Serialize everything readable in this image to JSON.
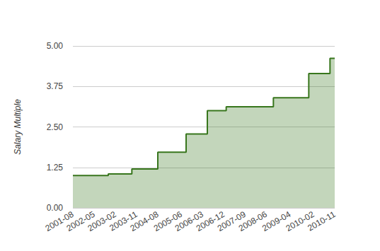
{
  "chart_data": {
    "type": "area",
    "line_style": "step",
    "color": "#38761d",
    "grid": true,
    "y_label": "Salary Multiple",
    "categories": [
      "2001-08",
      null,
      null,
      null,
      null,
      null,
      null,
      null,
      null,
      "2002-05",
      null,
      null,
      null,
      null,
      null,
      null,
      null,
      null,
      "2003-02",
      null,
      null,
      null,
      null,
      null,
      null,
      null,
      null,
      "2003-11",
      null,
      null,
      null,
      null,
      null,
      null,
      null,
      null,
      "2004-08",
      null,
      null,
      null,
      null,
      null,
      null,
      null,
      null,
      null,
      "2005-06",
      null,
      null,
      null,
      null,
      null,
      null,
      null,
      null,
      "2006-03",
      null,
      null,
      null,
      null,
      null,
      null,
      null,
      null,
      "2006-12",
      null,
      null,
      null,
      null,
      null,
      null,
      null,
      null,
      "2007-09",
      null,
      null,
      null,
      null,
      null,
      null,
      null,
      null,
      "2008-06",
      null,
      null,
      null,
      null,
      null,
      null,
      null,
      null,
      null,
      "2009-04",
      null,
      null,
      null,
      null,
      null,
      null,
      null,
      null,
      null,
      "2010-02",
      null,
      null,
      null,
      null,
      null,
      null,
      null,
      null,
      "2010-11"
    ],
    "values": [
      1.0,
      1.0,
      1.0,
      1.0,
      1.0,
      1.0,
      1.0,
      1.0,
      1.0,
      1.0,
      1.0,
      1.0,
      1.0,
      1.0,
      1.0,
      1.05,
      1.05,
      1.05,
      1.05,
      1.05,
      1.05,
      1.05,
      1.05,
      1.05,
      1.05,
      1.2,
      1.2,
      1.2,
      1.2,
      1.2,
      1.2,
      1.2,
      1.2,
      1.2,
      1.2,
      1.2,
      1.72,
      1.72,
      1.72,
      1.72,
      1.72,
      1.72,
      1.72,
      1.72,
      1.72,
      1.72,
      1.72,
      1.72,
      2.28,
      2.28,
      2.28,
      2.28,
      2.28,
      2.28,
      2.28,
      2.28,
      2.28,
      3.0,
      3.0,
      3.0,
      3.0,
      3.0,
      3.0,
      3.0,
      3.0,
      3.12,
      3.12,
      3.12,
      3.12,
      3.12,
      3.12,
      3.12,
      3.12,
      3.12,
      3.12,
      3.12,
      3.12,
      3.12,
      3.12,
      3.12,
      3.12,
      3.12,
      3.12,
      3.12,
      3.12,
      3.4,
      3.4,
      3.4,
      3.4,
      3.4,
      3.4,
      3.4,
      3.4,
      3.4,
      3.4,
      3.4,
      3.4,
      3.4,
      3.4,
      3.4,
      4.15,
      4.15,
      4.15,
      4.15,
      4.15,
      4.15,
      4.15,
      4.15,
      4.15,
      4.62,
      4.62,
      4.62
    ],
    "ylim": [
      0,
      5
    ],
    "yticks": [
      {
        "value": 0,
        "label": "0.00"
      },
      {
        "value": 1.25,
        "label": "1.25"
      },
      {
        "value": 2.5,
        "label": "2.50"
      },
      {
        "value": 3.75,
        "label": "3.75"
      },
      {
        "value": 5,
        "label": "5.00"
      }
    ]
  }
}
